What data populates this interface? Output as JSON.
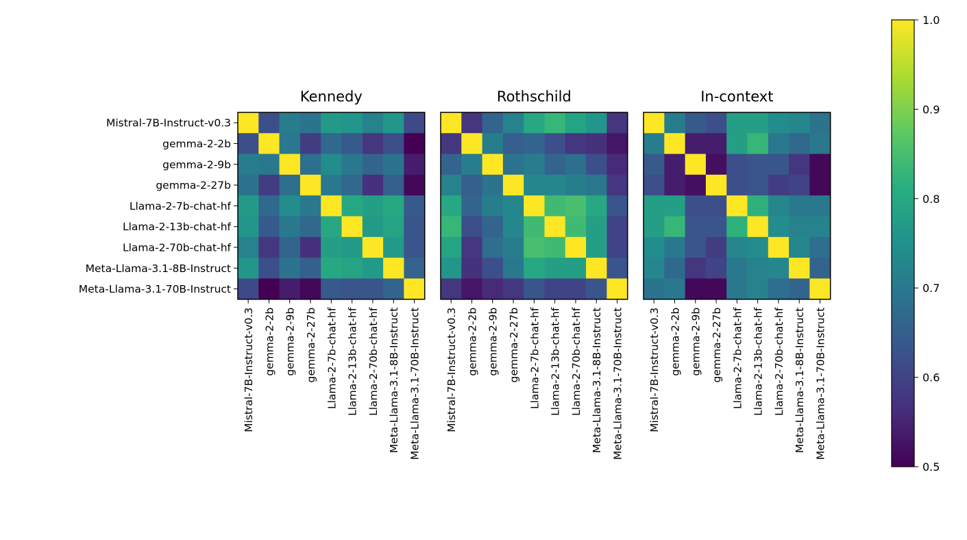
{
  "chart_data": {
    "type": "heatmap",
    "colormap": "viridis",
    "labels": [
      "Mistral-7B-Instruct-v0.3",
      "gemma-2-2b",
      "gemma-2-9b",
      "gemma-2-27b",
      "Llama-2-7b-chat-hf",
      "Llama-2-13b-chat-hf",
      "Llama-2-70b-chat-hf",
      "Meta-Llama-3.1-8B-Instruct",
      "Meta-Llama-3.1-70B-Instruct"
    ],
    "panels": [
      {
        "title": "Kennedy",
        "values": [
          [
            1.0,
            0.62,
            0.71,
            0.69,
            0.77,
            0.76,
            0.72,
            0.76,
            0.61
          ],
          [
            0.62,
            1.0,
            0.7,
            0.59,
            0.67,
            0.64,
            0.58,
            0.62,
            0.5
          ],
          [
            0.71,
            0.7,
            1.0,
            0.68,
            0.74,
            0.7,
            0.66,
            0.69,
            0.54
          ],
          [
            0.69,
            0.59,
            0.68,
            1.0,
            0.7,
            0.67,
            0.57,
            0.65,
            0.51
          ],
          [
            0.77,
            0.67,
            0.74,
            0.7,
            1.0,
            0.8,
            0.78,
            0.8,
            0.64
          ],
          [
            0.76,
            0.64,
            0.7,
            0.67,
            0.8,
            1.0,
            0.77,
            0.79,
            0.63
          ],
          [
            0.72,
            0.58,
            0.66,
            0.57,
            0.78,
            0.77,
            1.0,
            0.77,
            0.63
          ],
          [
            0.76,
            0.62,
            0.69,
            0.65,
            0.8,
            0.79,
            0.77,
            1.0,
            0.66
          ],
          [
            0.61,
            0.5,
            0.54,
            0.51,
            0.64,
            0.63,
            0.63,
            0.66,
            1.0
          ]
        ]
      },
      {
        "title": "Rothschild",
        "values": [
          [
            1.0,
            0.58,
            0.66,
            0.72,
            0.8,
            0.83,
            0.79,
            0.76,
            0.58
          ],
          [
            0.58,
            1.0,
            0.71,
            0.65,
            0.66,
            0.62,
            0.58,
            0.57,
            0.53
          ],
          [
            0.66,
            0.71,
            1.0,
            0.69,
            0.71,
            0.66,
            0.68,
            0.62,
            0.56
          ],
          [
            0.72,
            0.65,
            0.69,
            1.0,
            0.73,
            0.73,
            0.71,
            0.7,
            0.58
          ],
          [
            0.8,
            0.66,
            0.71,
            0.73,
            1.0,
            0.84,
            0.85,
            0.8,
            0.63
          ],
          [
            0.83,
            0.62,
            0.66,
            0.73,
            0.84,
            1.0,
            0.84,
            0.78,
            0.6
          ],
          [
            0.79,
            0.58,
            0.68,
            0.71,
            0.85,
            0.84,
            1.0,
            0.78,
            0.6
          ],
          [
            0.76,
            0.57,
            0.62,
            0.7,
            0.8,
            0.78,
            0.78,
            1.0,
            0.63
          ],
          [
            0.58,
            0.53,
            0.56,
            0.58,
            0.63,
            0.6,
            0.6,
            0.63,
            1.0
          ]
        ]
      },
      {
        "title": "In-context",
        "values": [
          [
            1.0,
            0.71,
            0.64,
            0.62,
            0.78,
            0.78,
            0.74,
            0.73,
            0.69
          ],
          [
            0.71,
            1.0,
            0.54,
            0.54,
            0.78,
            0.83,
            0.7,
            0.67,
            0.7
          ],
          [
            0.64,
            0.54,
            1.0,
            0.52,
            0.62,
            0.63,
            0.63,
            0.58,
            0.51
          ],
          [
            0.62,
            0.54,
            0.52,
            1.0,
            0.62,
            0.63,
            0.59,
            0.6,
            0.51
          ],
          [
            0.78,
            0.78,
            0.62,
            0.62,
            1.0,
            0.82,
            0.73,
            0.7,
            0.7
          ],
          [
            0.78,
            0.83,
            0.63,
            0.63,
            0.82,
            1.0,
            0.74,
            0.72,
            0.72
          ],
          [
            0.74,
            0.7,
            0.63,
            0.59,
            0.73,
            0.74,
            1.0,
            0.73,
            0.68
          ],
          [
            0.73,
            0.67,
            0.58,
            0.6,
            0.7,
            0.72,
            0.73,
            1.0,
            0.66
          ],
          [
            0.69,
            0.7,
            0.51,
            0.51,
            0.7,
            0.72,
            0.68,
            0.66,
            1.0
          ]
        ]
      }
    ],
    "colorbar": {
      "min": 0.5,
      "max": 1.0,
      "ticks": [
        "0.5",
        "0.6",
        "0.7",
        "0.8",
        "0.9",
        "1.0"
      ]
    }
  }
}
